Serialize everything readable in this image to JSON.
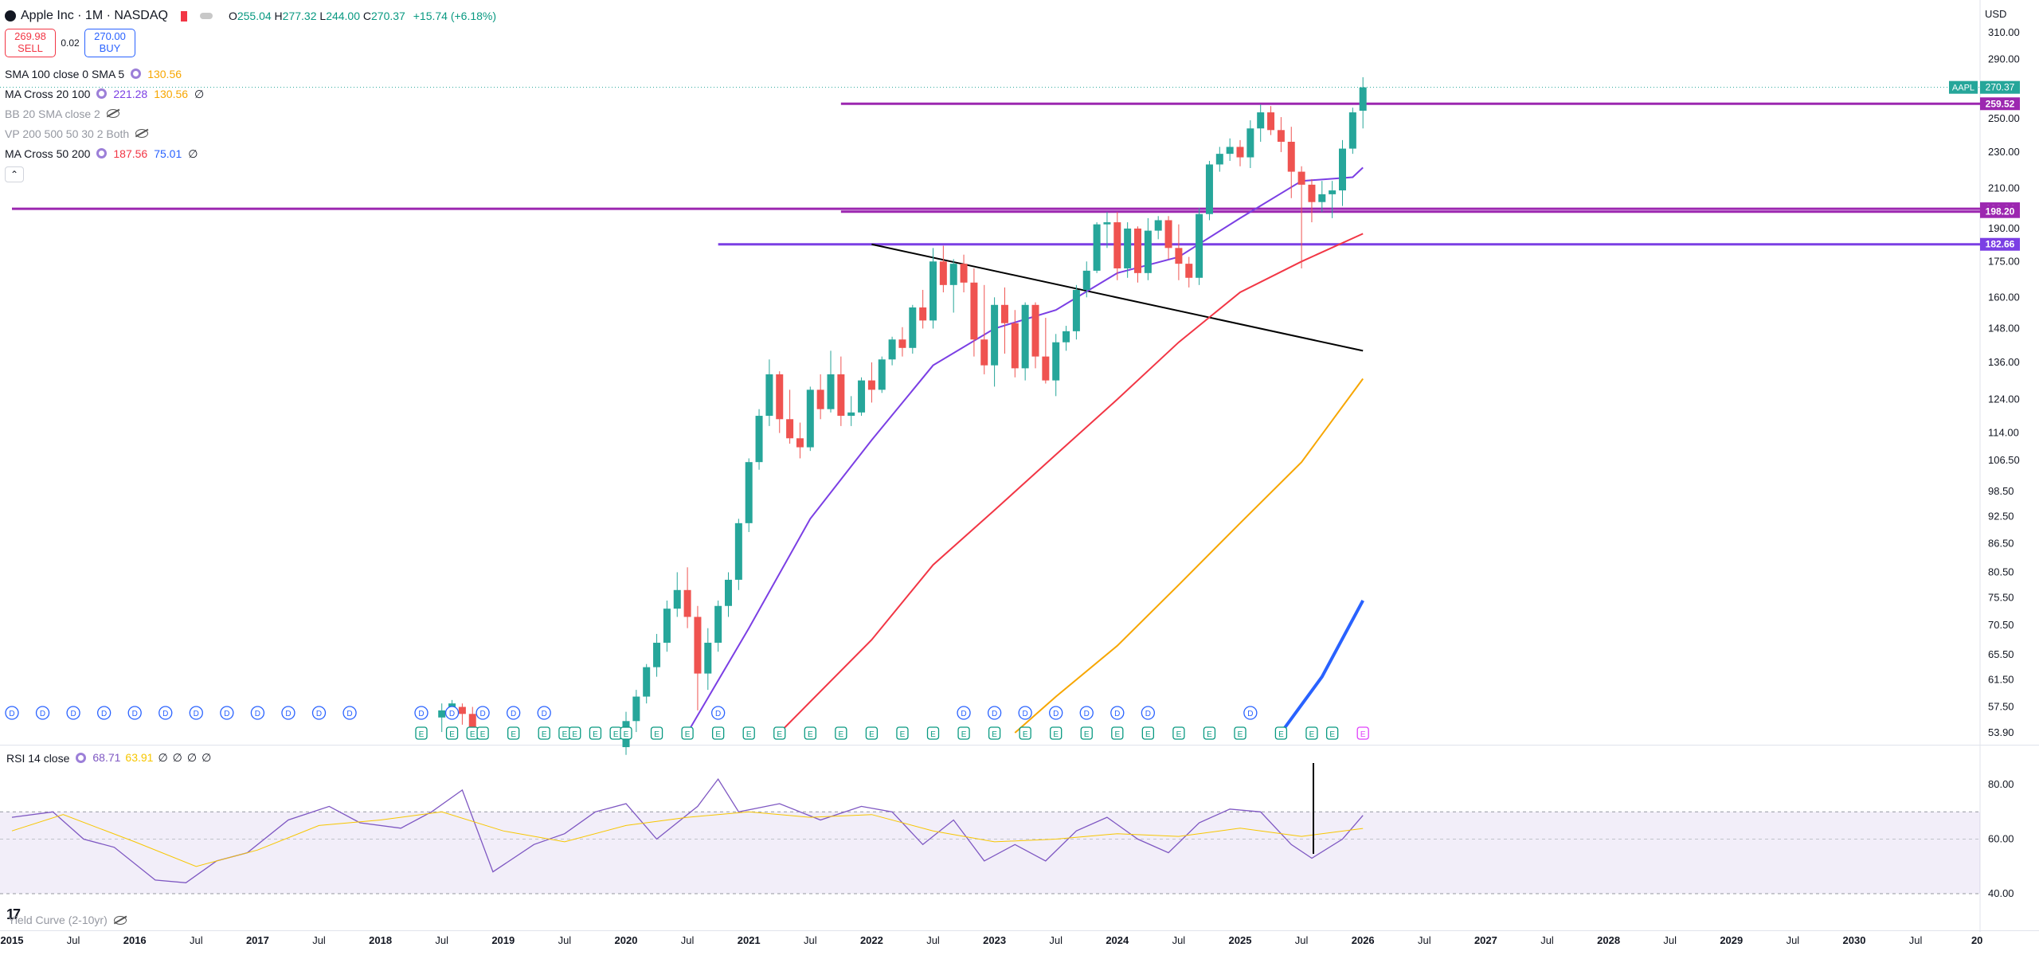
{
  "header": {
    "symbol_title": "Apple Inc · 1M · NASDAQ",
    "open": "255.04",
    "high": "277.32",
    "low": "244.00",
    "close": "270.37",
    "change": "+15.74 (+6.18%)",
    "sell_price": "269.98",
    "sell_label": "SELL",
    "spread": "0.02",
    "buy_price": "270.00",
    "buy_label": "BUY",
    "currency": "USD"
  },
  "indicators": [
    {
      "name": "SMA 100 close 0 SMA 5",
      "values": [
        "130.56"
      ],
      "colors": [
        "#f7a600"
      ],
      "muted": false,
      "icon": "gear-icon"
    },
    {
      "name": "MA Cross 20 100",
      "values": [
        "221.28",
        "130.56",
        "∅"
      ],
      "colors": [
        "#7b3fe4",
        "#f7a600",
        "#131722"
      ],
      "muted": false,
      "icon": "gear-icon"
    },
    {
      "name": "BB 20 SMA close 2",
      "values": [],
      "colors": [],
      "muted": true,
      "icon": "eye-off-icon"
    },
    {
      "name": "VP 200 500 50 30 2 Both",
      "values": [],
      "colors": [],
      "muted": true,
      "icon": "eye-off-icon"
    },
    {
      "name": "MA Cross 50 200",
      "values": [
        "187.56",
        "75.01",
        "∅"
      ],
      "colors": [
        "#f23645",
        "#2962ff",
        "#131722"
      ],
      "muted": false,
      "icon": "gear-icon"
    }
  ],
  "rsi_legend": {
    "name": "RSI 14 close",
    "values": [
      "68.71",
      "63.91",
      "∅",
      "∅",
      "∅",
      "∅"
    ],
    "colors": [
      "#7e57c2",
      "#f7c600",
      "#131722",
      "#131722",
      "#131722",
      "#131722"
    ]
  },
  "yield_legend": {
    "name": "Yield Curve (2-10yr)"
  },
  "chart_data": {
    "type": "candlestick",
    "symbol": "AAPL",
    "interval": "1M",
    "scale": "log",
    "ylim": [
      53.9,
      320
    ],
    "y_ticks": [
      "310.00",
      "290.00",
      "270.00",
      "250.00",
      "230.00",
      "210.00",
      "190.00",
      "175.00",
      "160.00",
      "148.00",
      "136.00",
      "124.00",
      "114.00",
      "106.50",
      "98.50",
      "92.50",
      "86.50",
      "80.50",
      "75.50",
      "70.50",
      "65.50",
      "61.50",
      "57.50",
      "53.90"
    ],
    "x_ticks": [
      "2015",
      "Jul",
      "2016",
      "Jul",
      "2017",
      "Jul",
      "2018",
      "Jul",
      "2019",
      "Jul",
      "2020",
      "Jul",
      "2021",
      "Jul",
      "2022",
      "Jul",
      "2023",
      "Jul",
      "2024",
      "Jul",
      "2025",
      "Jul",
      "2026",
      "Jul",
      "2027",
      "Jul",
      "2028",
      "Jul",
      "2029",
      "Jul",
      "2030",
      "Jul",
      "20"
    ],
    "x_range": [
      "2015-01",
      "2032-01"
    ],
    "candles": [
      {
        "t": "2018-07",
        "o": 56,
        "h": 58,
        "l": 54,
        "c": 57
      },
      {
        "t": "2018-08",
        "o": 57,
        "h": 58.5,
        "l": 56,
        "c": 58
      },
      {
        "t": "2018-09",
        "o": 57.5,
        "h": 58,
        "l": 55,
        "c": 56.5
      },
      {
        "t": "2018-10",
        "o": 56.5,
        "h": 57.5,
        "l": 53.9,
        "c": 54.5
      },
      {
        "t": "2020-01",
        "o": 52,
        "h": 56.8,
        "l": 51,
        "c": 55.5
      },
      {
        "t": "2020-02",
        "o": 55.5,
        "h": 60,
        "l": 54,
        "c": 59
      },
      {
        "t": "2020-03",
        "o": 59,
        "h": 64,
        "l": 58,
        "c": 63.5
      },
      {
        "t": "2020-04",
        "o": 63.5,
        "h": 69,
        "l": 62,
        "c": 67.5
      },
      {
        "t": "2020-05",
        "o": 67.5,
        "h": 75,
        "l": 66,
        "c": 73.5
      },
      {
        "t": "2020-06",
        "o": 73.5,
        "h": 80.5,
        "l": 72,
        "c": 77
      },
      {
        "t": "2020-07",
        "o": 77,
        "h": 81.5,
        "l": 70,
        "c": 72
      },
      {
        "t": "2020-08",
        "o": 72,
        "h": 74,
        "l": 57,
        "c": 62.5
      },
      {
        "t": "2020-09",
        "o": 62.5,
        "h": 70,
        "l": 60,
        "c": 67.5
      },
      {
        "t": "2020-10",
        "o": 67.5,
        "h": 75,
        "l": 66,
        "c": 74
      },
      {
        "t": "2020-11",
        "o": 74,
        "h": 80.5,
        "l": 72,
        "c": 79
      },
      {
        "t": "2020-12",
        "o": 79,
        "h": 92,
        "l": 77,
        "c": 91
      },
      {
        "t": "2021-01",
        "o": 91,
        "h": 107,
        "l": 89,
        "c": 106
      },
      {
        "t": "2021-02",
        "o": 106,
        "h": 121,
        "l": 104,
        "c": 119
      },
      {
        "t": "2021-03",
        "o": 119,
        "h": 137,
        "l": 116,
        "c": 132
      },
      {
        "t": "2021-04",
        "o": 132,
        "h": 133,
        "l": 114,
        "c": 118
      },
      {
        "t": "2021-05",
        "o": 118,
        "h": 127,
        "l": 111,
        "c": 112.5
      },
      {
        "t": "2021-06",
        "o": 112.5,
        "h": 117,
        "l": 107,
        "c": 110
      },
      {
        "t": "2021-07",
        "o": 110,
        "h": 128,
        "l": 109,
        "c": 127
      },
      {
        "t": "2021-08",
        "o": 127,
        "h": 132,
        "l": 118,
        "c": 121
      },
      {
        "t": "2021-09",
        "o": 121,
        "h": 140,
        "l": 120,
        "c": 132
      },
      {
        "t": "2021-10",
        "o": 132,
        "h": 138,
        "l": 116,
        "c": 119
      },
      {
        "t": "2021-11",
        "o": 119,
        "h": 125,
        "l": 116,
        "c": 120
      },
      {
        "t": "2021-12",
        "o": 120,
        "h": 131,
        "l": 119,
        "c": 130
      },
      {
        "t": "2022-01",
        "o": 130,
        "h": 136,
        "l": 123,
        "c": 127
      },
      {
        "t": "2022-02",
        "o": 127,
        "h": 138,
        "l": 126,
        "c": 137
      },
      {
        "t": "2022-03",
        "o": 137,
        "h": 145,
        "l": 135,
        "c": 144
      },
      {
        "t": "2022-04",
        "o": 144,
        "h": 148.5,
        "l": 138,
        "c": 141
      },
      {
        "t": "2022-05",
        "o": 141,
        "h": 157,
        "l": 139,
        "c": 156
      },
      {
        "t": "2022-06",
        "o": 156,
        "h": 163,
        "l": 148,
        "c": 151
      },
      {
        "t": "2022-07",
        "o": 151,
        "h": 181,
        "l": 148,
        "c": 175
      },
      {
        "t": "2022-08",
        "o": 175,
        "h": 182,
        "l": 162,
        "c": 165
      },
      {
        "t": "2022-09",
        "o": 165,
        "h": 176,
        "l": 154,
        "c": 174
      },
      {
        "t": "2022-10",
        "o": 174,
        "h": 178,
        "l": 162,
        "c": 166
      },
      {
        "t": "2022-11",
        "o": 166,
        "h": 172,
        "l": 138,
        "c": 144
      },
      {
        "t": "2022-12",
        "o": 144,
        "h": 165,
        "l": 132,
        "c": 135
      },
      {
        "t": "2023-01",
        "o": 135,
        "h": 160,
        "l": 128,
        "c": 157
      },
      {
        "t": "2023-02",
        "o": 157,
        "h": 164,
        "l": 139,
        "c": 150
      },
      {
        "t": "2023-03",
        "o": 150,
        "h": 155,
        "l": 131,
        "c": 134
      },
      {
        "t": "2023-04",
        "o": 134,
        "h": 158,
        "l": 130,
        "c": 157
      },
      {
        "t": "2023-05",
        "o": 157,
        "h": 158,
        "l": 134,
        "c": 138
      },
      {
        "t": "2023-06",
        "o": 138,
        "h": 152,
        "l": 129,
        "c": 130
      },
      {
        "t": "2023-07",
        "o": 130,
        "h": 146,
        "l": 125,
        "c": 143
      },
      {
        "t": "2023-08",
        "o": 143,
        "h": 149,
        "l": 140,
        "c": 147
      },
      {
        "t": "2023-09",
        "o": 147,
        "h": 165,
        "l": 144,
        "c": 163
      },
      {
        "t": "2023-10",
        "o": 163,
        "h": 175,
        "l": 160,
        "c": 171
      },
      {
        "t": "2023-11",
        "o": 171,
        "h": 193,
        "l": 170,
        "c": 192
      },
      {
        "t": "2023-12",
        "o": 192,
        "h": 198,
        "l": 181,
        "c": 193
      },
      {
        "t": "2024-01",
        "o": 193,
        "h": 198,
        "l": 167,
        "c": 172
      },
      {
        "t": "2024-02",
        "o": 172,
        "h": 193,
        "l": 168,
        "c": 190
      },
      {
        "t": "2024-03",
        "o": 190,
        "h": 191,
        "l": 166,
        "c": 170
      },
      {
        "t": "2024-04",
        "o": 170,
        "h": 195,
        "l": 167,
        "c": 189
      },
      {
        "t": "2024-05",
        "o": 189,
        "h": 196,
        "l": 185,
        "c": 194
      },
      {
        "t": "2024-06",
        "o": 194,
        "h": 196,
        "l": 176,
        "c": 181
      },
      {
        "t": "2024-07",
        "o": 181,
        "h": 192,
        "l": 167,
        "c": 174
      },
      {
        "t": "2024-08",
        "o": 174,
        "h": 177,
        "l": 164,
        "c": 168
      },
      {
        "t": "2024-09",
        "o": 168,
        "h": 200,
        "l": 165,
        "c": 197
      },
      {
        "t": "2024-10",
        "o": 197,
        "h": 225,
        "l": 194,
        "c": 223
      },
      {
        "t": "2024-11",
        "o": 223,
        "h": 233,
        "l": 219,
        "c": 229
      },
      {
        "t": "2024-12",
        "o": 229,
        "h": 238,
        "l": 225,
        "c": 233
      },
      {
        "t": "2025-01",
        "o": 233,
        "h": 237,
        "l": 222,
        "c": 227
      },
      {
        "t": "2025-02",
        "o": 227,
        "h": 249,
        "l": 221,
        "c": 244
      },
      {
        "t": "2025-03",
        "o": 244,
        "h": 259,
        "l": 236,
        "c": 254
      },
      {
        "t": "2025-04",
        "o": 254,
        "h": 258,
        "l": 240,
        "c": 243
      },
      {
        "t": "2025-05",
        "o": 243,
        "h": 251,
        "l": 230,
        "c": 236
      },
      {
        "t": "2025-06",
        "o": 236,
        "h": 245,
        "l": 205,
        "c": 219
      },
      {
        "t": "2025-07",
        "o": 219,
        "h": 222,
        "l": 172,
        "c": 212
      },
      {
        "t": "2025-08",
        "o": 212,
        "h": 215,
        "l": 193,
        "c": 203
      },
      {
        "t": "2025-09",
        "o": 203,
        "h": 214,
        "l": 198,
        "c": 207
      },
      {
        "t": "2025-10",
        "o": 207,
        "h": 214,
        "l": 195,
        "c": 209
      },
      {
        "t": "2025-11",
        "o": 209,
        "h": 237,
        "l": 201,
        "c": 232
      },
      {
        "t": "2025-12",
        "o": 232,
        "h": 257,
        "l": 229,
        "c": 254
      },
      {
        "t": "2026-01",
        "o": 255.04,
        "h": 277.32,
        "l": 244.0,
        "c": 270.37
      }
    ],
    "moving_averages": [
      {
        "name": "MA 20",
        "color": "#7b3fe4",
        "points": [
          [
            "2020-07",
            53.9
          ],
          [
            "2021-01",
            70
          ],
          [
            "2021-07",
            92
          ],
          [
            "2022-01",
            112
          ],
          [
            "2022-07",
            135
          ],
          [
            "2023-01",
            148
          ],
          [
            "2023-07",
            155
          ],
          [
            "2024-01",
            170
          ],
          [
            "2024-07",
            177
          ],
          [
            "2025-01",
            195
          ],
          [
            "2025-07",
            214
          ],
          [
            "2025-12",
            216
          ],
          [
            "2026-01",
            221.28
          ]
        ]
      },
      {
        "name": "MA 50",
        "color": "#f23645",
        "points": [
          [
            "2021-04",
            53.9
          ],
          [
            "2022-01",
            68
          ],
          [
            "2022-07",
            82
          ],
          [
            "2023-01",
            94
          ],
          [
            "2023-07",
            108
          ],
          [
            "2024-01",
            124
          ],
          [
            "2024-07",
            143
          ],
          [
            "2025-01",
            162
          ],
          [
            "2025-07",
            175
          ],
          [
            "2026-01",
            187.56
          ]
        ]
      },
      {
        "name": "MA 100",
        "color": "#f7a600",
        "points": [
          [
            "2023-03",
            53.9
          ],
          [
            "2023-07",
            59
          ],
          [
            "2024-01",
            67
          ],
          [
            "2024-07",
            78
          ],
          [
            "2025-01",
            91
          ],
          [
            "2025-07",
            106
          ],
          [
            "2026-01",
            130.56
          ]
        ]
      },
      {
        "name": "MA 200",
        "color": "#2962ff",
        "points": [
          [
            "2025-05",
            53.9
          ],
          [
            "2025-09",
            62
          ],
          [
            "2026-01",
            75.01
          ]
        ]
      }
    ],
    "horizontal_levels": [
      {
        "value": 259.52,
        "label": "259.52",
        "color": "#9c27b0",
        "from": "2021-10"
      },
      {
        "value": 199.64,
        "label": "199.64",
        "color": "#9c27b0",
        "from": "2015-01"
      },
      {
        "value": 198.2,
        "label": "198.20",
        "color": "#9c27b0",
        "from": "2021-10"
      },
      {
        "value": 182.66,
        "label": "182.66",
        "color": "#7b3fe4",
        "from": "2020-10"
      }
    ],
    "trendline": {
      "color": "#000000",
      "from": [
        "2022-01",
        182.66
      ],
      "to": [
        "2026-01",
        140
      ]
    },
    "price_label": {
      "symbol": "AAPL",
      "value": "270.37"
    },
    "dividend_markers": [
      "2015-01",
      "2015-04",
      "2015-07",
      "2015-10",
      "2016-01",
      "2016-04",
      "2016-07",
      "2016-10",
      "2017-01",
      "2017-04",
      "2017-07",
      "2017-10",
      "2018-05",
      "2018-08",
      "2018-11",
      "2019-02",
      "2019-05",
      "2020-10",
      "2022-10",
      "2023-01",
      "2023-04",
      "2023-07",
      "2023-10",
      "2024-01",
      "2024-04",
      "2025-02"
    ],
    "earnings_markers": [
      "2018-05",
      "2018-08",
      "2018-10",
      "2018-11",
      "2019-02",
      "2019-05",
      "2019-07",
      "2019-08",
      "2019-10",
      "2019-12",
      "2020-01",
      "2020-04",
      "2020-07",
      "2020-10",
      "2021-01",
      "2021-04",
      "2021-07",
      "2021-10",
      "2022-01",
      "2022-04",
      "2022-07",
      "2022-10",
      "2023-01",
      "2023-04",
      "2023-07",
      "2023-10",
      "2024-01",
      "2024-04",
      "2024-07",
      "2024-10",
      "2025-01",
      "2025-05",
      "2025-08",
      "2025-10",
      "2026-01"
    ],
    "rsi": {
      "ylim": [
        20,
        100
      ],
      "y_ticks": [
        "80.00",
        "60.00",
        "40.00"
      ],
      "band_low": 40,
      "band_high": 70,
      "rsi_line": [
        [
          "2015-01",
          68
        ],
        [
          "2015-05",
          70
        ],
        [
          "2015-08",
          60
        ],
        [
          "2015-11",
          57
        ],
        [
          "2016-03",
          45
        ],
        [
          "2016-06",
          44
        ],
        [
          "2016-09",
          52
        ],
        [
          "2016-12",
          55
        ],
        [
          "2017-04",
          67
        ],
        [
          "2017-08",
          72
        ],
        [
          "2017-11",
          66
        ],
        [
          "2018-03",
          64
        ],
        [
          "2018-06",
          70
        ],
        [
          "2018-09",
          78
        ],
        [
          "2018-12",
          48
        ],
        [
          "2019-04",
          58
        ],
        [
          "2019-07",
          62
        ],
        [
          "2019-10",
          70
        ],
        [
          "2020-01",
          73
        ],
        [
          "2020-04",
          60
        ],
        [
          "2020-08",
          72
        ],
        [
          "2020-10",
          82
        ],
        [
          "2020-12",
          70
        ],
        [
          "2021-04",
          73
        ],
        [
          "2021-08",
          67
        ],
        [
          "2021-12",
          72
        ],
        [
          "2022-03",
          70
        ],
        [
          "2022-06",
          58
        ],
        [
          "2022-09",
          67
        ],
        [
          "2022-12",
          52
        ],
        [
          "2023-03",
          58
        ],
        [
          "2023-06",
          52
        ],
        [
          "2023-09",
          63
        ],
        [
          "2023-12",
          68
        ],
        [
          "2024-03",
          60
        ],
        [
          "2024-06",
          55
        ],
        [
          "2024-09",
          66
        ],
        [
          "2024-12",
          71
        ],
        [
          "2025-03",
          70
        ],
        [
          "2025-06",
          58
        ],
        [
          "2025-08",
          53
        ],
        [
          "2025-11",
          60
        ],
        [
          "2026-01",
          68.71
        ]
      ],
      "signal_line": [
        [
          "2015-01",
          63
        ],
        [
          "2015-06",
          69
        ],
        [
          "2016-01",
          59
        ],
        [
          "2016-07",
          50
        ],
        [
          "2017-01",
          56
        ],
        [
          "2017-07",
          65
        ],
        [
          "2018-01",
          67
        ],
        [
          "2018-07",
          70
        ],
        [
          "2019-01",
          63
        ],
        [
          "2019-07",
          59
        ],
        [
          "2020-01",
          65
        ],
        [
          "2020-07",
          68
        ],
        [
          "2021-01",
          70
        ],
        [
          "2021-07",
          68
        ],
        [
          "2022-01",
          69
        ],
        [
          "2022-07",
          63
        ],
        [
          "2023-01",
          59
        ],
        [
          "2023-07",
          60
        ],
        [
          "2024-01",
          62
        ],
        [
          "2024-07",
          61
        ],
        [
          "2025-01",
          64
        ],
        [
          "2025-07",
          61
        ],
        [
          "2026-01",
          63.91
        ]
      ]
    }
  }
}
